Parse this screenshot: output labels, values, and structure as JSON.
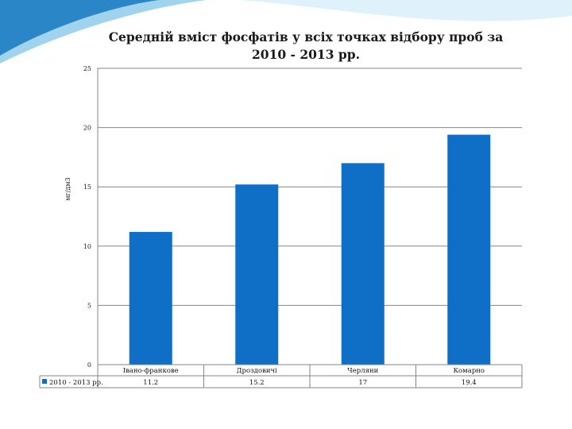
{
  "slide": {
    "colors": {
      "wave_dark": "#2a86c6",
      "wave_light": "#9fd3ee",
      "wave_pale": "#dff1fb"
    }
  },
  "chart_data": {
    "type": "bar",
    "title": "Середній вміст фосфатів у всіх точках відбору проб за 2010 - 2013 рр.",
    "xlabel": "",
    "ylabel": "мг/дм3",
    "ylim": [
      0,
      25
    ],
    "yticks": [
      0,
      5,
      10,
      15,
      20,
      25
    ],
    "grid": true,
    "legend_position": "data-table-left",
    "categories": [
      "Івано-франкове",
      "Дроздовичі",
      "Черляни",
      "Комарно"
    ],
    "series": [
      {
        "name": "2010 - 2013 рр.",
        "color": "#0f6fc6",
        "values": [
          11.2,
          15.2,
          17,
          19.4
        ]
      }
    ],
    "value_labels": [
      "11.2",
      "15.2",
      "17",
      "19.4"
    ]
  }
}
